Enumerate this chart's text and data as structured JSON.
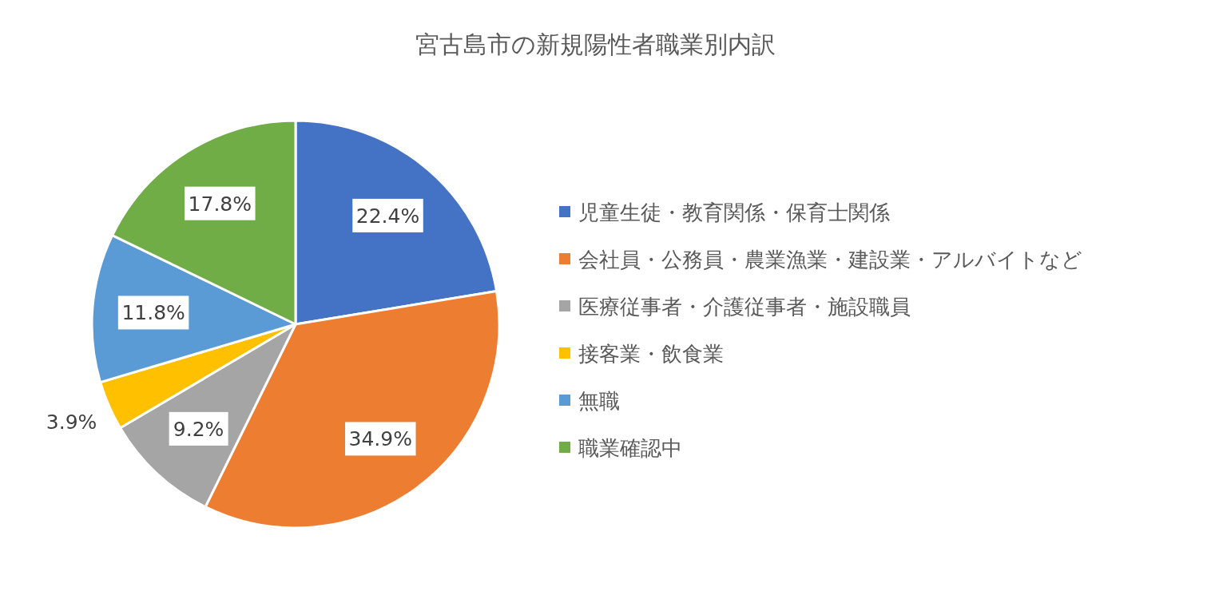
{
  "chart_data": {
    "type": "pie",
    "title": "宮古島市の新規陽性者職業別内訳",
    "categories": [
      "児童生徒・教育関係・保育士関係",
      "会社員・公務員・農業漁業・建設業・アルバイトなど",
      "医療従事者・介護従事者・施設職員",
      "接客業・飲食業",
      "無職",
      "職業確認中"
    ],
    "values": [
      22.4,
      34.9,
      9.2,
      3.9,
      11.8,
      17.8
    ],
    "value_labels": [
      "22.4%",
      "34.9%",
      "9.2%",
      "3.9%",
      "11.8%",
      "17.8%"
    ],
    "colors": [
      "#4472c4",
      "#ed7d31",
      "#a5a5a5",
      "#ffc000",
      "#5b9bd5",
      "#70ad47"
    ],
    "legend": "right"
  }
}
